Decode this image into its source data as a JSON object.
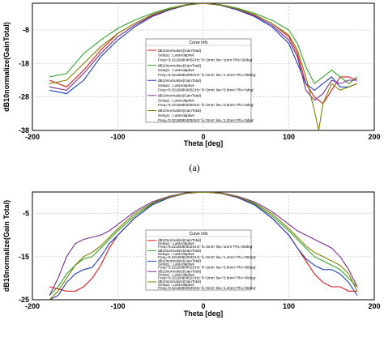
{
  "caption_a": "(a)",
  "chart_data": [
    {
      "type": "line",
      "xlabel": "Theta [deg]",
      "ylabel": "dB10normalize(GainTotal)",
      "xlim": [
        -200,
        200
      ],
      "ylim": [
        -38,
        0
      ],
      "xticks": [
        -200,
        -100,
        0,
        100,
        200
      ],
      "yticks": [
        -38,
        -28,
        -18,
        -8
      ],
      "xtick_labels": [
        "-200",
        "-100",
        "0",
        "100",
        "200"
      ],
      "ytick_labels": [
        "-38",
        "-28",
        "-18",
        "-8"
      ],
      "legend_placement": "center",
      "legend_title": "Curve Info",
      "series": [
        {
          "color": "#e31a1c",
          "legend": [
            "dB10normalize(GainTotal)",
            "Setup1 : LastAdaptive",
            "Freq='9.3216080405GHz' ll='2mm' lss='1mm' Phi='90deg'"
          ],
          "x": [
            -180,
            -160,
            -140,
            -120,
            -100,
            -80,
            -60,
            -40,
            -20,
            0,
            20,
            40,
            60,
            80,
            100,
            110,
            120,
            130,
            140,
            150,
            160,
            170,
            180
          ],
          "y": [
            -23,
            -25,
            -20,
            -14,
            -9,
            -6,
            -3.5,
            -1.8,
            -0.5,
            0,
            -0.5,
            -1.8,
            -3.5,
            -6,
            -10,
            -15,
            -24,
            -28,
            -30,
            -26,
            -22,
            -22,
            -23
          ]
        },
        {
          "color": "#33a02c",
          "legend": [
            "dB10normalize(GainTotal)",
            "Setup1 : LastAdaptive",
            "Freq='9.3216080405GHz' ll='2mm' lss='1.4mm' Phi='90deg'"
          ],
          "x": [
            -180,
            -160,
            -140,
            -120,
            -100,
            -80,
            -60,
            -40,
            -20,
            0,
            20,
            40,
            60,
            80,
            100,
            110,
            120,
            130,
            140,
            150,
            160,
            170,
            180
          ],
          "y": [
            -22,
            -21,
            -15,
            -11,
            -7.5,
            -5,
            -3,
            -1.5,
            -0.4,
            0,
            -0.4,
            -1.5,
            -3,
            -5,
            -8,
            -12,
            -19,
            -24,
            -22,
            -20,
            -22,
            -24,
            -22
          ]
        },
        {
          "color": "#1f3fbf",
          "legend": [
            "dB10normalize(GainTotal)",
            "Setup1 : LastAdaptive",
            "Freq='9.3216080405GHz' ll='2mm' lss='0.6mm' Phi='0deg'"
          ],
          "x": [
            -180,
            -160,
            -140,
            -120,
            -100,
            -80,
            -60,
            -40,
            -20,
            0,
            20,
            40,
            60,
            80,
            100,
            110,
            120,
            130,
            140,
            150,
            160,
            170,
            180
          ],
          "y": [
            -26,
            -27,
            -23,
            -16,
            -11,
            -7,
            -4,
            -2,
            -0.6,
            0,
            -0.6,
            -2,
            -4,
            -7,
            -12,
            -18,
            -24,
            -26,
            -24,
            -22,
            -25,
            -25,
            -24
          ]
        },
        {
          "color": "#7b2d8e",
          "legend": [
            "dB10normalize(GainTotal)",
            "Setup1 : LastAdaptive",
            "Freq='9.3216080405GHz' ll='2mm' lss='0.8mm' Phi='0deg'"
          ],
          "x": [
            -180,
            -160,
            -140,
            -120,
            -100,
            -80,
            -60,
            -40,
            -20,
            0,
            20,
            40,
            60,
            80,
            100,
            110,
            120,
            130,
            140,
            150,
            160,
            170,
            180
          ],
          "y": [
            -25,
            -26,
            -21,
            -15,
            -10,
            -6.5,
            -3.8,
            -1.9,
            -0.5,
            0,
            -0.5,
            -1.9,
            -3.8,
            -6.5,
            -11,
            -16,
            -26,
            -29,
            -27,
            -23,
            -24,
            -23,
            -23
          ]
        },
        {
          "color": "#808000",
          "legend": [
            "dB10normalize(GainTotal)",
            "Setup1 : LastAdaptive",
            "Freq='9.3216080405GHz' ll='2mm' lss='1.2mm' Phi='0deg'"
          ],
          "x": [
            -180,
            -160,
            -140,
            -120,
            -100,
            -80,
            -60,
            -40,
            -20,
            0,
            20,
            40,
            60,
            80,
            100,
            110,
            120,
            130,
            135,
            140,
            150,
            160,
            170,
            180
          ],
          "y": [
            -24,
            -23,
            -18,
            -13,
            -9,
            -6,
            -3.4,
            -1.7,
            -0.5,
            0,
            -0.5,
            -1.7,
            -3.4,
            -6,
            -9.5,
            -14,
            -22,
            -32,
            -38,
            -30,
            -24,
            -26,
            -25,
            -24
          ]
        }
      ]
    },
    {
      "type": "line",
      "xlabel": "Theta [deg]",
      "ylabel": "dB10normalize(Gain Total)",
      "xlim": [
        -200,
        200
      ],
      "ylim": [
        -25,
        0
      ],
      "xticks": [
        -200,
        -100,
        0,
        100,
        200
      ],
      "yticks": [
        -25,
        -15,
        -5
      ],
      "xtick_labels": [
        "-200",
        "-100",
        "0",
        "100",
        "200"
      ],
      "ytick_labels": [
        "-25",
        "-15",
        "-5"
      ],
      "legend_placement": "center",
      "legend_title": "Curve Info",
      "series": [
        {
          "color": "#e31a1c",
          "legend": [
            "dB10normalize(GainTotal)",
            "Setup1 : LastAdaptive",
            "Freq='9.3216080402GHz' ll='2mm' lss='1mm' Phi='90deg'"
          ],
          "x": [
            -180,
            -170,
            -160,
            -150,
            -140,
            -130,
            -120,
            -110,
            -100,
            -80,
            -60,
            -40,
            -20,
            0,
            20,
            40,
            60,
            80,
            100,
            110,
            120,
            130,
            140,
            150,
            160,
            170,
            180
          ],
          "y": [
            -22,
            -22.5,
            -23,
            -23,
            -22,
            -20,
            -17,
            -13,
            -10,
            -6,
            -3,
            -1.3,
            -0.3,
            0,
            -0.3,
            -1.3,
            -3,
            -6,
            -10,
            -13,
            -16,
            -19,
            -21,
            -22,
            -22,
            -23,
            -23
          ]
        },
        {
          "color": "#33a02c",
          "legend": [
            "dB10normalize(GainTotal)",
            "Setup1 : LastAdaptive",
            "Freq='9.3216080402GHz' ll='2mm' lss='1.4mm' Phi='90deg'"
          ],
          "x": [
            -180,
            -170,
            -160,
            -150,
            -140,
            -130,
            -120,
            -110,
            -100,
            -80,
            -60,
            -40,
            -20,
            0,
            20,
            40,
            60,
            80,
            100,
            110,
            120,
            130,
            140,
            150,
            160,
            170,
            180
          ],
          "y": [
            -24,
            -22,
            -19,
            -17,
            -15.5,
            -15,
            -13,
            -11,
            -9,
            -5.5,
            -2.8,
            -1.2,
            -0.3,
            0,
            -0.3,
            -1.2,
            -2.8,
            -5.5,
            -9,
            -11,
            -13,
            -15,
            -16,
            -17,
            -18,
            -20,
            -22
          ]
        },
        {
          "color": "#1f3fbf",
          "legend": [
            "dB10normalize(GainTotal)",
            "Setup1 : LastAdaptive",
            "Freq='9.3216080402GHz' ll='2mm' lss='0.6mm' Phi='90deg'"
          ],
          "x": [
            -180,
            -170,
            -160,
            -150,
            -140,
            -130,
            -120,
            -110,
            -100,
            -80,
            -60,
            -40,
            -20,
            0,
            20,
            40,
            60,
            80,
            100,
            110,
            120,
            130,
            140,
            150,
            160,
            170,
            180
          ],
          "y": [
            -25,
            -24,
            -21,
            -19,
            -18,
            -17.5,
            -15,
            -12,
            -10,
            -6,
            -3,
            -1.3,
            -0.3,
            0,
            -0.3,
            -1.3,
            -3,
            -6,
            -10,
            -13,
            -15.5,
            -17,
            -18,
            -18,
            -19,
            -21,
            -24
          ]
        },
        {
          "color": "#7b2d8e",
          "legend": [
            "dB10normalize(GainTotal)",
            "Setup1 : LastAdaptive",
            "Freq='9.3216080402GHz' ll='2mm' lss='0.8mm' Phi='90deg'"
          ],
          "x": [
            -180,
            -170,
            -160,
            -150,
            -140,
            -130,
            -120,
            -110,
            -100,
            -80,
            -60,
            -40,
            -20,
            0,
            20,
            40,
            60,
            80,
            100,
            110,
            120,
            130,
            140,
            150,
            160,
            170,
            180
          ],
          "y": [
            -24,
            -20,
            -15,
            -12,
            -11,
            -10.5,
            -10,
            -9,
            -7.5,
            -4.5,
            -2.3,
            -1,
            -0.2,
            0,
            -0.2,
            -1,
            -2.3,
            -4.5,
            -7.5,
            -9,
            -10,
            -11,
            -12,
            -13,
            -15,
            -18,
            -22
          ]
        },
        {
          "color": "#808000",
          "legend": [
            "dB10normalize(GainTotal)",
            "Setup1 : LastAdaptive",
            "Freq='9.3216080402GHz' ll='2mm' lss='1.2mm' Phi='90deg'"
          ],
          "x": [
            -180,
            -170,
            -160,
            -150,
            -140,
            -130,
            -120,
            -110,
            -100,
            -80,
            -60,
            -40,
            -20,
            0,
            20,
            40,
            60,
            80,
            100,
            110,
            120,
            130,
            140,
            150,
            160,
            170,
            180
          ],
          "y": [
            -25,
            -23,
            -20,
            -17,
            -15,
            -14,
            -12.5,
            -10.5,
            -8.5,
            -5,
            -2.6,
            -1.1,
            -0.3,
            0,
            -0.3,
            -1.1,
            -2.6,
            -5,
            -8.5,
            -10.5,
            -12.5,
            -14,
            -15,
            -16,
            -17,
            -19,
            -23
          ]
        }
      ]
    }
  ]
}
